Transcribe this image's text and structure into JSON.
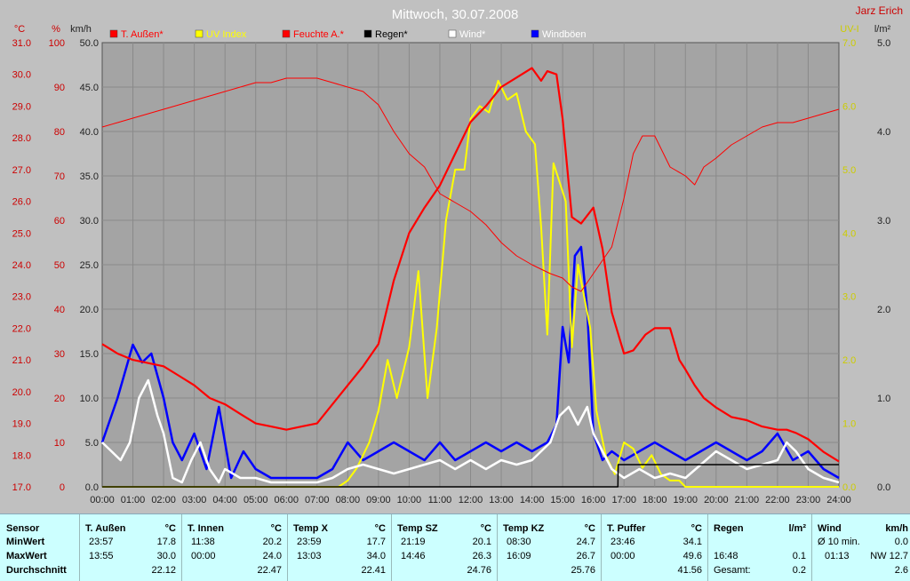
{
  "title": "Mittwoch, 30.07.2008",
  "author": "Jarz Erich",
  "axes": {
    "temp_unit": "°C",
    "temp_ticks": [
      "31.0",
      "30.0",
      "29.0",
      "28.0",
      "27.0",
      "26.0",
      "25.0",
      "24.0",
      "23.0",
      "22.0",
      "21.0",
      "20.0",
      "19.0",
      "18.0",
      "17.0"
    ],
    "hum_unit": "%",
    "hum_ticks": [
      "100",
      "90",
      "80",
      "70",
      "60",
      "50",
      "40",
      "30",
      "20",
      "10",
      "0"
    ],
    "wind_unit": "km/h",
    "wind_ticks": [
      "50.0",
      "45.0",
      "40.0",
      "35.0",
      "30.0",
      "25.0",
      "20.0",
      "15.0",
      "10.0",
      "5.0",
      "0.0"
    ],
    "uv_unit": "UV-I",
    "uv_ticks": [
      "7.0",
      "6.0",
      "5.0",
      "4.0",
      "3.0",
      "2.0",
      "1.0",
      "0.0"
    ],
    "rain_unit": "l/m²",
    "rain_ticks": [
      "5.0",
      "4.0",
      "3.0",
      "2.0",
      "1.0",
      "0.0"
    ],
    "x_ticks": [
      "00:00",
      "01:00",
      "02:00",
      "03:00",
      "04:00",
      "05:00",
      "06:00",
      "07:00",
      "08:00",
      "09:00",
      "10:00",
      "11:00",
      "12:00",
      "13:00",
      "14:00",
      "15:00",
      "16:00",
      "17:00",
      "18:00",
      "19:00",
      "20:00",
      "21:00",
      "22:00",
      "23:00",
      "24:00"
    ]
  },
  "legend": [
    {
      "label": "T. Außen*",
      "color": "#ff0000"
    },
    {
      "label": "UV Index",
      "color": "#ffff00"
    },
    {
      "label": "Feuchte A.*",
      "color": "#ff0000"
    },
    {
      "label": "Regen*",
      "color": "#000000"
    },
    {
      "label": "Wind*",
      "color": "#ffffff"
    },
    {
      "label": "Windböen",
      "color": "#0000ff"
    }
  ],
  "chart_data": {
    "type": "line",
    "title": "Mittwoch, 30.07.2008",
    "x_range": [
      0,
      24
    ],
    "series": [
      {
        "name": "T. Außen*",
        "axis": "temp",
        "color": "#ff0000",
        "ylim": [
          17,
          31
        ],
        "x": [
          0,
          0.5,
          1,
          1.5,
          2,
          2.5,
          3,
          3.5,
          4,
          4.5,
          5,
          5.5,
          6,
          6.5,
          7,
          7.5,
          8,
          8.5,
          9,
          9.5,
          10,
          10.5,
          11,
          11.5,
          12,
          12.5,
          13,
          13.5,
          14,
          14.3,
          14.5,
          14.8,
          15,
          15.3,
          15.6,
          16,
          16.3,
          16.6,
          17,
          17.3,
          17.7,
          18,
          18.5,
          18.8,
          19,
          19.3,
          19.6,
          20,
          20.5,
          21,
          21.5,
          22,
          22.3,
          22.6,
          23,
          23.5,
          24
        ],
        "y": [
          21.5,
          21.2,
          21.0,
          20.9,
          20.8,
          20.5,
          20.2,
          19.8,
          19.6,
          19.3,
          19.0,
          18.9,
          18.8,
          18.9,
          19.0,
          19.6,
          20.2,
          20.8,
          21.5,
          23.5,
          25.0,
          25.8,
          26.5,
          27.5,
          28.5,
          29.0,
          29.6,
          29.9,
          30.2,
          29.8,
          30.1,
          30.0,
          28.6,
          25.5,
          25.3,
          25.8,
          24.5,
          22.5,
          21.2,
          21.3,
          21.8,
          22.0,
          22.0,
          21.0,
          20.7,
          20.2,
          19.8,
          19.5,
          19.2,
          19.1,
          18.9,
          18.8,
          18.8,
          18.7,
          18.5,
          18.1,
          17.8
        ]
      },
      {
        "name": "Feuchte A.*",
        "axis": "hum",
        "color": "#ff0000",
        "ylim": [
          0,
          100
        ],
        "x": [
          0,
          0.5,
          1,
          1.5,
          2,
          2.5,
          3,
          3.5,
          4,
          4.5,
          5,
          5.5,
          6,
          6.5,
          7,
          7.5,
          8,
          8.5,
          9,
          9.5,
          10,
          10.5,
          11,
          11.5,
          12,
          12.5,
          13,
          13.5,
          14,
          14.3,
          14.6,
          15,
          15.3,
          15.6,
          16,
          16.3,
          16.6,
          17,
          17.3,
          17.6,
          18,
          18.5,
          19,
          19.3,
          19.6,
          20,
          20.5,
          21,
          21.5,
          22,
          22.5,
          23,
          23.5,
          24
        ],
        "y": [
          81,
          82,
          83,
          84,
          85,
          86,
          87,
          88,
          89,
          90,
          91,
          91,
          92,
          92,
          92,
          91,
          90,
          89,
          86,
          80,
          75,
          72,
          66,
          64,
          62,
          59,
          55,
          52,
          50,
          49,
          48,
          47,
          45,
          44,
          48,
          51,
          54,
          65,
          75,
          79,
          79,
          72,
          70,
          68,
          72,
          74,
          77,
          79,
          81,
          82,
          82,
          83,
          84,
          85
        ]
      },
      {
        "name": "UV Index",
        "axis": "uv",
        "color": "#ffff00",
        "ylim": [
          0,
          7
        ],
        "x": [
          0,
          7.7,
          8,
          8.3,
          8.7,
          9,
          9.3,
          9.6,
          10,
          10.3,
          10.6,
          10.9,
          11.2,
          11.5,
          11.8,
          12,
          12.3,
          12.6,
          12.9,
          13.2,
          13.5,
          13.8,
          14.1,
          14.3,
          14.5,
          14.7,
          14.9,
          15.1,
          15.3,
          15.5,
          15.7,
          15.9,
          16.1,
          16.4,
          16.7,
          17,
          17.3,
          17.6,
          17.9,
          18.2,
          18.5,
          18.8,
          19,
          24
        ],
        "y": [
          0,
          0,
          0.1,
          0.3,
          0.7,
          1.2,
          2.0,
          1.4,
          2.2,
          3.4,
          1.4,
          2.5,
          4.2,
          5.0,
          5.0,
          5.8,
          6.0,
          5.9,
          6.4,
          6.1,
          6.2,
          5.6,
          5.4,
          4.1,
          2.4,
          5.1,
          4.8,
          4.5,
          2.2,
          3.5,
          3.0,
          2.5,
          1.2,
          0.5,
          0.2,
          0.7,
          0.6,
          0.3,
          0.5,
          0.2,
          0.1,
          0.1,
          0,
          0
        ]
      },
      {
        "name": "Wind*",
        "axis": "wind",
        "color": "#ffffff",
        "ylim": [
          0,
          50
        ],
        "x": [
          0,
          0.3,
          0.6,
          0.9,
          1.2,
          1.5,
          1.8,
          2,
          2.3,
          2.6,
          2.9,
          3.2,
          3.5,
          3.8,
          4,
          4.5,
          5,
          5.5,
          6,
          6.5,
          7,
          7.5,
          8,
          8.5,
          9,
          9.5,
          10,
          10.5,
          11,
          11.5,
          12,
          12.5,
          13,
          13.5,
          14,
          14.3,
          14.6,
          14.9,
          15.2,
          15.5,
          15.8,
          16,
          16.3,
          16.6,
          17,
          17.5,
          18,
          18.5,
          19,
          19.5,
          20,
          20.5,
          21,
          21.5,
          22,
          22.3,
          22.6,
          23,
          23.5,
          24
        ],
        "y": [
          5,
          4,
          3,
          5,
          10,
          12,
          8,
          6,
          1,
          0.5,
          3,
          5,
          2,
          0.5,
          2,
          1,
          1,
          0.5,
          0.5,
          0.5,
          0.5,
          1,
          2,
          2.5,
          2,
          1.5,
          2,
          2.5,
          3,
          2,
          3,
          2,
          3,
          2.5,
          3,
          4,
          5,
          8,
          9,
          7,
          9,
          6,
          4,
          2,
          1,
          2,
          1,
          1.5,
          1,
          2.5,
          4,
          3,
          2,
          2.5,
          3,
          5,
          4,
          2,
          1,
          0.5
        ]
      },
      {
        "name": "Windböen",
        "axis": "wind",
        "color": "#0000ff",
        "ylim": [
          0,
          50
        ],
        "x": [
          0,
          0.5,
          1,
          1.3,
          1.6,
          2,
          2.3,
          2.6,
          3,
          3.4,
          3.8,
          4.2,
          4.6,
          5,
          5.5,
          6,
          6.5,
          7,
          7.5,
          8,
          8.5,
          9,
          9.5,
          10,
          10.5,
          11,
          11.5,
          12,
          12.5,
          13,
          13.5,
          14,
          14.5,
          14.8,
          15,
          15.2,
          15.4,
          15.6,
          15.8,
          16,
          16.3,
          16.6,
          17,
          17.5,
          18,
          18.5,
          19,
          19.5,
          20,
          20.5,
          21,
          21.5,
          22,
          22.5,
          23,
          23.5,
          24
        ],
        "y": [
          5,
          10,
          16,
          14,
          15,
          10,
          5,
          3,
          6,
          2,
          9,
          1,
          4,
          2,
          1,
          1,
          1,
          1,
          2,
          5,
          3,
          4,
          5,
          4,
          3,
          5,
          3,
          4,
          5,
          4,
          5,
          4,
          5,
          7,
          18,
          14,
          26,
          27,
          20,
          6,
          3,
          4,
          3,
          4,
          5,
          4,
          3,
          4,
          5,
          4,
          3,
          4,
          6,
          3,
          4,
          2,
          1
        ]
      },
      {
        "name": "Regen*",
        "axis": "rain",
        "color": "#000000",
        "ylim": [
          0,
          5
        ],
        "x": [
          0,
          16.8,
          16.81,
          24
        ],
        "y": [
          0,
          0,
          0.25,
          0.25
        ]
      }
    ]
  },
  "table": {
    "sensor": {
      "title": "Sensor",
      "rows": [
        "MinWert",
        "MaxWert",
        "Durchschnitt"
      ]
    },
    "columns": [
      {
        "name": "T. Außen",
        "unit": "°C",
        "min_t": "23:57",
        "min_v": "17.8",
        "max_t": "13:55",
        "max_v": "30.0",
        "avg": "22.12"
      },
      {
        "name": "T. Innen",
        "unit": "°C",
        "min_t": "11:38",
        "min_v": "20.2",
        "max_t": "00:00",
        "max_v": "24.0",
        "avg": "22.47"
      },
      {
        "name": "Temp X",
        "unit": "°C",
        "min_t": "23:59",
        "min_v": "17.7",
        "max_t": "13:03",
        "max_v": "34.0",
        "avg": "22.41"
      },
      {
        "name": "Temp SZ",
        "unit": "°C",
        "min_t": "21:19",
        "min_v": "20.1",
        "max_t": "14:46",
        "max_v": "26.3",
        "avg": "24.76"
      },
      {
        "name": "Temp KZ",
        "unit": "°C",
        "min_t": "08:30",
        "min_v": "24.7",
        "max_t": "16:09",
        "max_v": "26.7",
        "avg": "25.76"
      },
      {
        "name": "T. Puffer",
        "unit": "°C",
        "min_t": "23:46",
        "min_v": "34.1",
        "max_t": "00:00",
        "max_v": "49.6",
        "avg": "41.56"
      }
    ],
    "regen": {
      "name": "Regen",
      "unit": "l/m²",
      "t1": "16:48",
      "v1": "0.1",
      "t2": "Gesamt:",
      "v2": "0.2"
    },
    "wind": {
      "name": "Wind",
      "unit": "km/h",
      "r1l": "Ø 10 min.",
      "r1v": "0.0",
      "r2l": "01:13",
      "r2v": "NW 12.7",
      "r3v": "2.6"
    }
  }
}
